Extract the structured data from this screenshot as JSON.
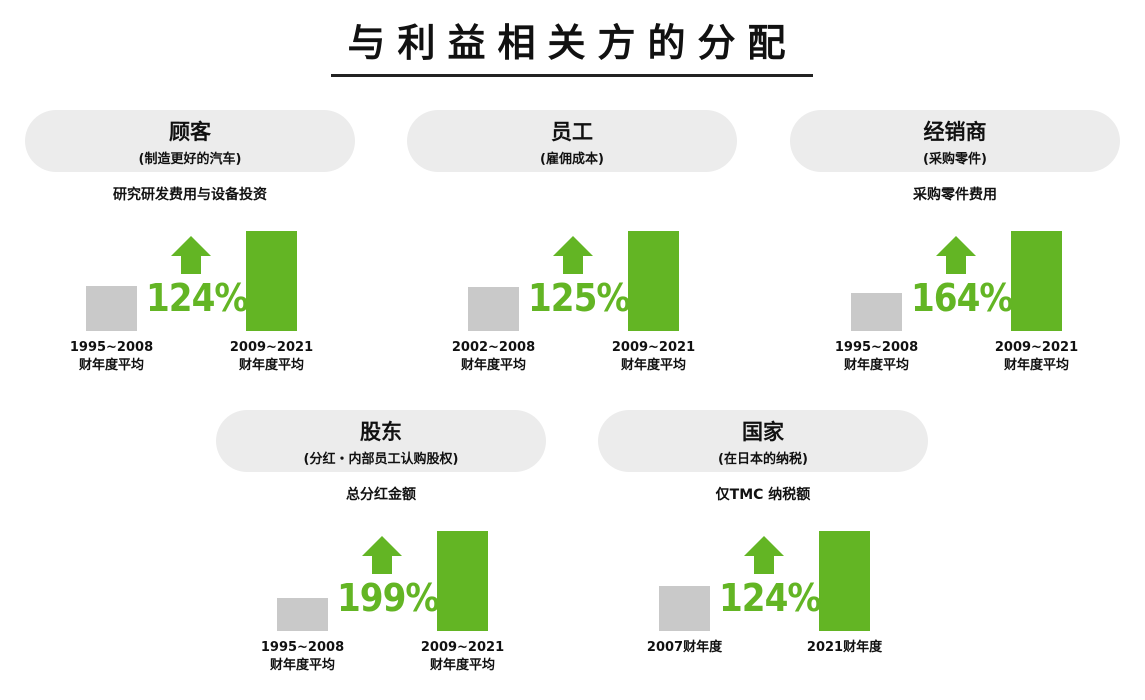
{
  "title": "与利益相关方的分配",
  "colors": {
    "before": "#c9c9c9",
    "after": "#63b524",
    "pill": "#ececec"
  },
  "chart_data": [
    {
      "type": "bar",
      "stakeholder": "顾客",
      "subtitle": "(制造更好的汽车)",
      "metric": "研究研发费用与设备投资",
      "categories": [
        [
          "1995~2008",
          "财年度平均"
        ],
        [
          "2009~2021",
          "财年度平均"
        ]
      ],
      "values": [
        100,
        224
      ],
      "growth_label": "124%"
    },
    {
      "type": "bar",
      "stakeholder": "员工",
      "subtitle": "(雇佣成本)",
      "metric": "",
      "categories": [
        [
          "2002~2008",
          "财年度平均"
        ],
        [
          "2009~2021",
          "财年度平均"
        ]
      ],
      "values": [
        100,
        225
      ],
      "growth_label": "125%"
    },
    {
      "type": "bar",
      "stakeholder": "经销商",
      "subtitle": "(采购零件)",
      "metric": "采购零件费用",
      "categories": [
        [
          "1995~2008",
          "财年度平均"
        ],
        [
          "2009~2021",
          "财年度平均"
        ]
      ],
      "values": [
        100,
        264
      ],
      "growth_label": "164%"
    },
    {
      "type": "bar",
      "stakeholder": "股东",
      "subtitle": "(分红・内部员工认购股权)",
      "metric": "总分红金额",
      "categories": [
        [
          "1995~2008",
          "财年度平均"
        ],
        [
          "2009~2021",
          "财年度平均"
        ]
      ],
      "values": [
        100,
        299
      ],
      "growth_label": "199%"
    },
    {
      "type": "bar",
      "stakeholder": "国家",
      "subtitle": "(在日本的纳税)",
      "metric": "仅TMC 纳税额",
      "categories": [
        [
          "2007财年度"
        ],
        [
          "2021财年度"
        ]
      ],
      "values": [
        100,
        224
      ],
      "growth_label": "124%"
    }
  ]
}
